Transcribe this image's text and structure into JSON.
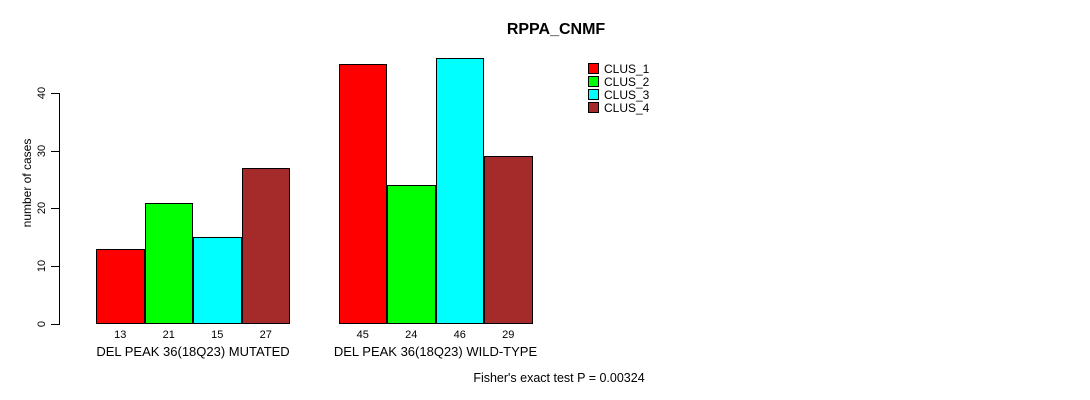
{
  "chart_data": {
    "type": "bar",
    "title": "RPPA_CNMF",
    "ylabel": "number of cases",
    "xlabel": "",
    "yticks": [
      0,
      10,
      20,
      30,
      40
    ],
    "ylim": [
      0,
      46
    ],
    "grid": false,
    "legend_position": "right",
    "bar_value_labels_shown": true,
    "groups": [
      "DEL PEAK 36(18Q23) MUTATED",
      "DEL PEAK 36(18Q23) WILD-TYPE"
    ],
    "series": [
      {
        "name": "CLUS_1",
        "color": "#ff0000",
        "values": [
          13,
          45
        ]
      },
      {
        "name": "CLUS_2",
        "color": "#00ff00",
        "values": [
          21,
          24
        ]
      },
      {
        "name": "CLUS_3",
        "color": "#00ffff",
        "values": [
          15,
          46
        ]
      },
      {
        "name": "CLUS_4",
        "color": "#a52a2a",
        "values": [
          27,
          29
        ]
      }
    ],
    "annotation": "Fisher's exact test P = 0.00324"
  },
  "colors": {
    "background": "#ffffff",
    "axis": "#000000",
    "text": "#000000"
  }
}
